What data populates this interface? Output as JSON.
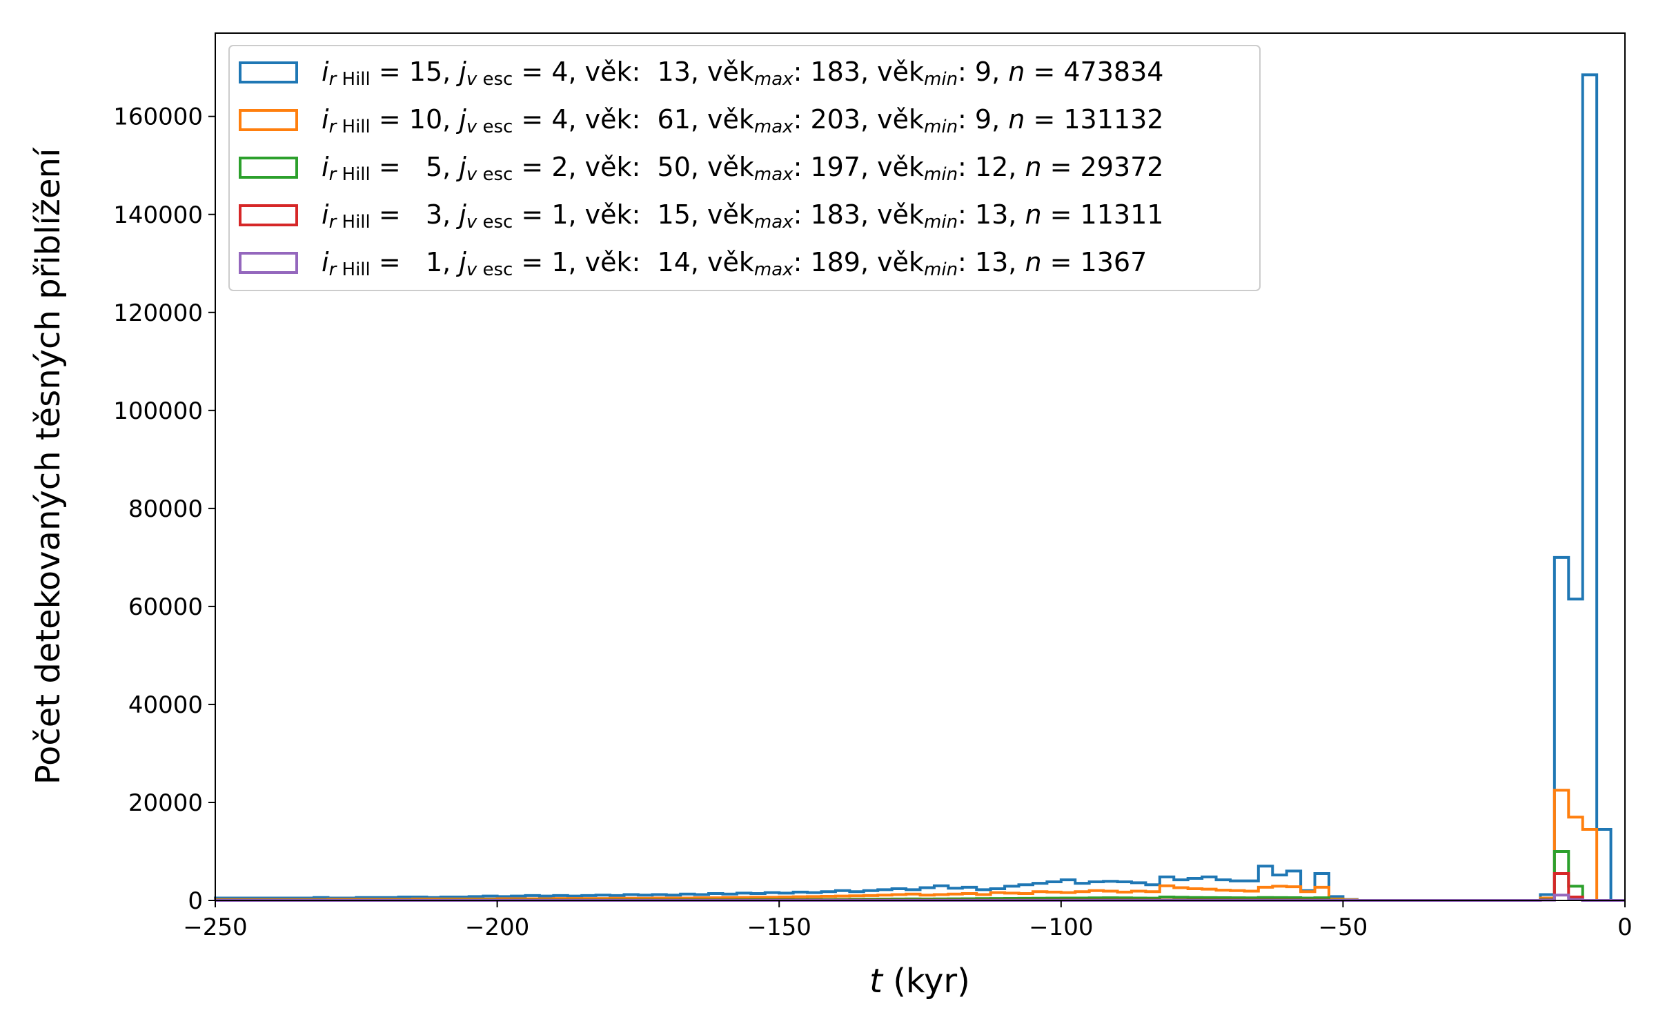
{
  "chart_data": {
    "type": "histogram",
    "xlabel": {
      "var": "t",
      "unit": " (kyr)"
    },
    "ylabel": "Počet detekovaných těsných přiblížení",
    "xlim": [
      -250,
      0
    ],
    "ylim": [
      0,
      177000
    ],
    "xticks": [
      -250,
      -200,
      -150,
      -100,
      -50,
      0
    ],
    "yticks": [
      0,
      20000,
      40000,
      60000,
      80000,
      100000,
      120000,
      140000,
      160000
    ],
    "bin_width": 2.5,
    "legend_position": "upper-left",
    "series": [
      {
        "color": "#1f77b4",
        "legend": {
          "r": "15",
          "v": "4",
          "vek": "13",
          "vek_max": "183",
          "vek_min": "9",
          "n": "473834"
        },
        "values": [
          500,
          500,
          500,
          500,
          500,
          500,
          500,
          600,
          500,
          500,
          600,
          600,
          600,
          700,
          700,
          600,
          700,
          700,
          800,
          900,
          800,
          900,
          1000,
          900,
          1000,
          900,
          1000,
          1100,
          1000,
          1200,
          1100,
          1200,
          1100,
          1300,
          1200,
          1400,
          1300,
          1500,
          1400,
          1600,
          1500,
          1700,
          1600,
          1800,
          2000,
          1800,
          2000,
          2200,
          2400,
          2200,
          2600,
          3000,
          2500,
          2700,
          2200,
          2400,
          2900,
          3200,
          3500,
          3800,
          4200,
          3500,
          3800,
          3900,
          3800,
          3600,
          3200,
          4800,
          4200,
          4500,
          4800,
          4200,
          4000,
          4000,
          7000,
          5200,
          6000,
          2000,
          5500,
          800,
          200,
          0,
          0,
          0,
          0,
          0,
          0,
          0,
          0,
          0,
          0,
          0,
          0,
          0,
          1200,
          70000,
          61500,
          168500,
          14500,
          0
        ]
      },
      {
        "color": "#ff7f0e",
        "legend": {
          "r": "10",
          "v": "4",
          "vek": "61",
          "vek_max": "203",
          "vek_min": "9",
          "n": "131132"
        },
        "values": [
          200,
          200,
          200,
          200,
          200,
          200,
          200,
          200,
          250,
          250,
          250,
          250,
          250,
          250,
          300,
          300,
          300,
          300,
          300,
          300,
          350,
          350,
          350,
          350,
          400,
          400,
          400,
          400,
          450,
          450,
          450,
          500,
          500,
          500,
          550,
          550,
          600,
          600,
          650,
          650,
          700,
          750,
          800,
          850,
          900,
          950,
          1000,
          1100,
          1200,
          1300,
          1100,
          1200,
          1300,
          1400,
          1200,
          1600,
          1500,
          1400,
          1800,
          1700,
          1600,
          1800,
          2000,
          1900,
          1700,
          1900,
          1800,
          3000,
          2600,
          2400,
          2300,
          2100,
          2000,
          1900,
          2700,
          2900,
          2800,
          1800,
          2700,
          300,
          100,
          0,
          0,
          0,
          0,
          0,
          0,
          0,
          0,
          0,
          0,
          0,
          0,
          0,
          500,
          22500,
          17000,
          14500,
          0,
          0
        ]
      },
      {
        "color": "#2ca02c",
        "legend": {
          "r": "5",
          "v": "2",
          "vek": "50",
          "vek_max": "197",
          "vek_min": "12",
          "n": "29372"
        },
        "values": [
          50,
          50,
          50,
          50,
          50,
          50,
          50,
          50,
          50,
          50,
          60,
          60,
          60,
          60,
          60,
          60,
          70,
          70,
          70,
          70,
          70,
          80,
          80,
          80,
          80,
          90,
          90,
          90,
          100,
          100,
          100,
          110,
          110,
          120,
          120,
          130,
          130,
          140,
          150,
          160,
          170,
          180,
          190,
          200,
          220,
          240,
          260,
          280,
          300,
          320,
          300,
          320,
          340,
          360,
          380,
          400,
          420,
          440,
          460,
          480,
          500,
          500,
          520,
          540,
          520,
          500,
          480,
          700,
          650,
          600,
          580,
          560,
          540,
          520,
          600,
          580,
          560,
          500,
          550,
          50,
          0,
          0,
          0,
          0,
          0,
          0,
          0,
          0,
          0,
          0,
          0,
          0,
          0,
          0,
          200,
          10000,
          2900,
          0,
          0,
          0
        ]
      },
      {
        "color": "#d62728",
        "legend": {
          "r": "3",
          "v": "1",
          "vek": "15",
          "vek_max": "183",
          "vek_min": "13",
          "n": "11311"
        },
        "values": [
          20,
          20,
          20,
          20,
          20,
          20,
          20,
          20,
          20,
          20,
          20,
          20,
          20,
          20,
          20,
          20,
          20,
          20,
          20,
          20,
          30,
          30,
          30,
          30,
          30,
          30,
          30,
          30,
          30,
          30,
          40,
          40,
          40,
          40,
          40,
          40,
          40,
          40,
          40,
          40,
          50,
          50,
          50,
          50,
          50,
          50,
          50,
          50,
          50,
          50,
          60,
          60,
          60,
          60,
          60,
          60,
          60,
          60,
          60,
          60,
          70,
          70,
          70,
          70,
          70,
          70,
          70,
          70,
          70,
          70,
          70,
          70,
          70,
          70,
          70,
          70,
          70,
          70,
          70,
          0,
          0,
          0,
          0,
          0,
          0,
          0,
          0,
          0,
          0,
          0,
          0,
          0,
          0,
          0,
          100,
          5500,
          700,
          0,
          0,
          0
        ]
      },
      {
        "color": "#9467bd",
        "legend": {
          "r": "1",
          "v": "1",
          "vek": "14",
          "vek_max": "189",
          "vek_min": "13",
          "n": "1367"
        },
        "values": [
          5,
          5,
          5,
          5,
          5,
          5,
          5,
          5,
          5,
          5,
          5,
          5,
          5,
          5,
          5,
          5,
          5,
          5,
          5,
          5,
          5,
          5,
          5,
          5,
          5,
          5,
          5,
          5,
          5,
          5,
          5,
          5,
          5,
          5,
          5,
          5,
          5,
          5,
          5,
          5,
          5,
          5,
          5,
          5,
          5,
          5,
          5,
          5,
          5,
          5,
          5,
          5,
          5,
          5,
          5,
          5,
          5,
          5,
          5,
          5,
          5,
          5,
          5,
          5,
          5,
          5,
          5,
          5,
          5,
          5,
          5,
          5,
          5,
          5,
          5,
          5,
          5,
          5,
          5,
          0,
          0,
          0,
          0,
          0,
          0,
          0,
          0,
          0,
          0,
          0,
          0,
          0,
          0,
          0,
          50,
          1100,
          200,
          0,
          0,
          0
        ]
      }
    ]
  }
}
